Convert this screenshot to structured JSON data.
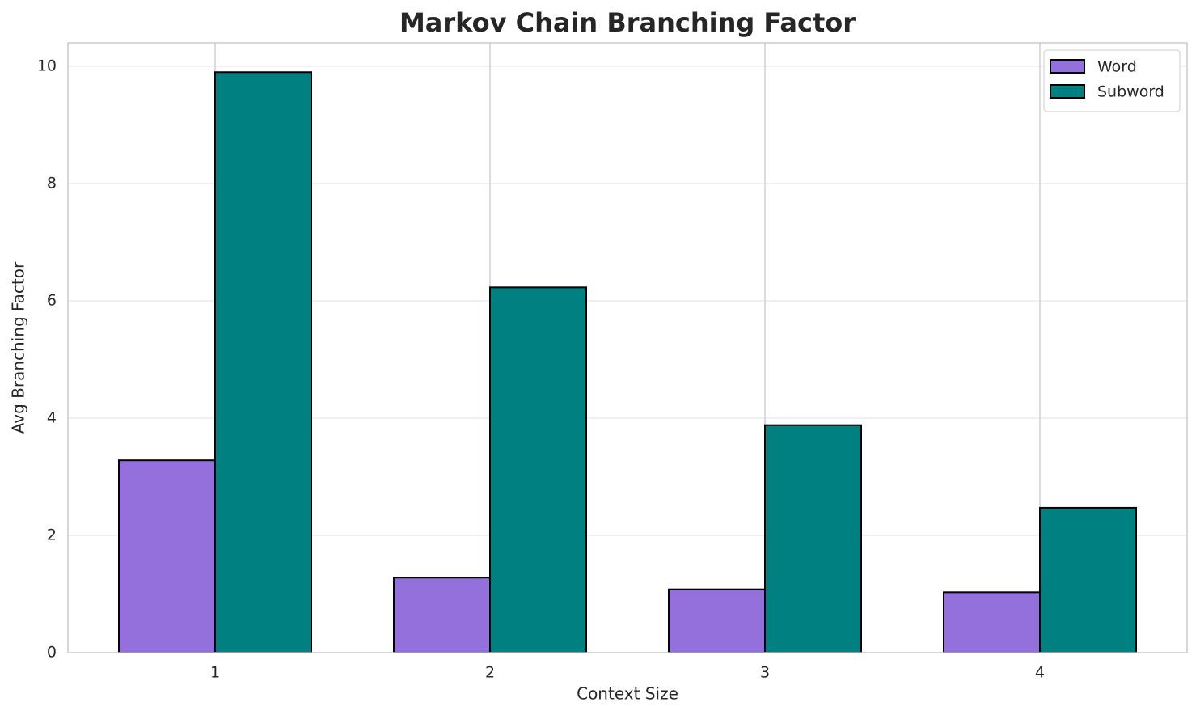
{
  "chart_data": {
    "type": "bar",
    "title": "Markov Chain Branching Factor",
    "x_label": "Context Size",
    "y_label": "Avg Branching Factor",
    "categories": [
      "1",
      "2",
      "3",
      "4"
    ],
    "series": [
      {
        "name": "Word",
        "color": "#9370db",
        "values": [
          3.28,
          1.28,
          1.08,
          1.03
        ]
      },
      {
        "name": "Subword",
        "color": "#008080",
        "values": [
          9.9,
          6.23,
          3.88,
          2.47
        ]
      }
    ],
    "ylim": [
      0,
      10.4
    ],
    "yticks": [
      0,
      2,
      4,
      6,
      8,
      10
    ],
    "grid": true,
    "legend": "upper right"
  }
}
